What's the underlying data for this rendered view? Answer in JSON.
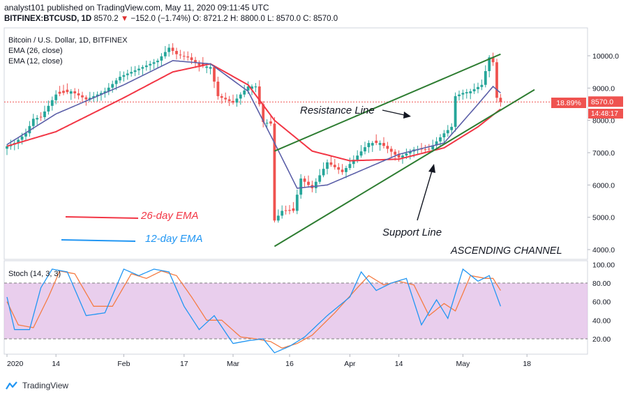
{
  "header": {
    "publisher_line": "analyst101 published on TradingView.com, May 11, 2020 09:11:45 UTC",
    "symbol": "BITFINEX:BTCUSD, 1D",
    "price": "8570.2",
    "change": "−152.0 (−1.74%)",
    "ohlc_o": "O: 8721.2",
    "ohlc_h": "H: 8800.0",
    "ohlc_l": "L: 8570.0",
    "ohlc_c": "C: 8570.0"
  },
  "legend": {
    "title": "Bitcoin / U.S. Dollar, 1D, BITFINEX",
    "ema26": "EMA (26, close)",
    "ema12": "EMA (12, close)",
    "stoch": "Stoch (14, 3, 3)"
  },
  "annotations": {
    "resistance": "Resistance Line",
    "support": "Support Line",
    "channel": "ASCENDING CHANNEL",
    "ema26_label": "26-day EMA",
    "ema12_label": "12-day EMA"
  },
  "price_badges": {
    "current": "8570.0",
    "percent": "18.89%",
    "countdown": "14:48:17"
  },
  "footer": {
    "brand": "TradingView"
  },
  "colors": {
    "up": "#26a69a",
    "down": "#ef5350",
    "ema26": "#f23645",
    "ema12": "#5b5fa8",
    "stoch_k": "#2196f3",
    "stoch_d": "#f57c44",
    "channel": "#2e7d32",
    "stoch_band": "#e1bee7"
  },
  "chart_data": {
    "type": "candlestick",
    "price_axis": {
      "ticks": [
        4000,
        5000,
        6000,
        7000,
        8000,
        9000,
        10000
      ],
      "labels": [
        "4000.0",
        "5000.0",
        "6000.0",
        "7000.0",
        "8000.0",
        "9000.0",
        "10000.0"
      ]
    },
    "stoch_axis": {
      "ticks": [
        20,
        40,
        60,
        80,
        100
      ],
      "labels": [
        "20.00",
        "40.00",
        "60.00",
        "80.00",
        "100.00"
      ],
      "band": [
        20,
        80
      ]
    },
    "time_axis": {
      "ticks": [
        "2020-01-01",
        "2020-01-14",
        "2020-02-01",
        "2020-02-17",
        "2020-03-01",
        "2020-03-16",
        "2020-04-01",
        "2020-04-14",
        "2020-05-01",
        "2020-05-18"
      ],
      "labels": [
        "2020",
        "14",
        "Feb",
        "17",
        "Mar",
        "16",
        "Apr",
        "14",
        "May",
        "18"
      ]
    },
    "anchors": [
      [
        "2020-01-01",
        7200
      ],
      [
        "2020-01-03",
        7300
      ],
      [
        "2020-01-06",
        7600
      ],
      [
        "2020-01-08",
        8050
      ],
      [
        "2020-01-10",
        8100
      ],
      [
        "2020-01-14",
        8800
      ],
      [
        "2020-01-18",
        8900
      ],
      [
        "2020-01-22",
        8650
      ],
      [
        "2020-01-27",
        8900
      ],
      [
        "2020-01-31",
        9350
      ],
      [
        "2020-02-05",
        9600
      ],
      [
        "2020-02-10",
        9850
      ],
      [
        "2020-02-13",
        10250
      ],
      [
        "2020-02-15",
        10050
      ],
      [
        "2020-02-18",
        9950
      ],
      [
        "2020-02-21",
        9700
      ],
      [
        "2020-02-24",
        9650
      ],
      [
        "2020-02-26",
        8750
      ],
      [
        "2020-03-01",
        8550
      ],
      [
        "2020-03-05",
        9050
      ],
      [
        "2020-03-07",
        9050
      ],
      [
        "2020-03-09",
        7950
      ],
      [
        "2020-03-11",
        7900
      ],
      [
        "2020-03-12",
        4900
      ],
      [
        "2020-03-14",
        5200
      ],
      [
        "2020-03-17",
        5200
      ],
      [
        "2020-03-19",
        6200
      ],
      [
        "2020-03-22",
        5900
      ],
      [
        "2020-03-26",
        6700
      ],
      [
        "2020-03-30",
        6400
      ],
      [
        "2020-04-01",
        6650
      ],
      [
        "2020-04-06",
        7300
      ],
      [
        "2020-04-09",
        7300
      ],
      [
        "2020-04-14",
        6850
      ],
      [
        "2020-04-18",
        7100
      ],
      [
        "2020-04-22",
        7100
      ],
      [
        "2020-04-26",
        7600
      ],
      [
        "2020-04-28",
        7800
      ],
      [
        "2020-04-29",
        8750
      ],
      [
        "2020-05-01",
        8850
      ],
      [
        "2020-05-03",
        8900
      ],
      [
        "2020-05-06",
        9100
      ],
      [
        "2020-05-08",
        9950
      ],
      [
        "2020-05-09",
        9800
      ],
      [
        "2020-05-10",
        8700
      ],
      [
        "2020-05-11",
        8570
      ]
    ],
    "ema26_anchors": [
      [
        "2020-01-01",
        7200
      ],
      [
        "2020-01-14",
        7650
      ],
      [
        "2020-02-01",
        8700
      ],
      [
        "2020-02-14",
        9500
      ],
      [
        "2020-02-24",
        9750
      ],
      [
        "2020-03-05",
        9100
      ],
      [
        "2020-03-12",
        8000
      ],
      [
        "2020-03-22",
        7050
      ],
      [
        "2020-04-01",
        6750
      ],
      [
        "2020-04-14",
        6800
      ],
      [
        "2020-04-26",
        7150
      ],
      [
        "2020-05-05",
        7800
      ],
      [
        "2020-05-11",
        8350
      ]
    ],
    "ema12_anchors": [
      [
        "2020-01-01",
        7250
      ],
      [
        "2020-01-14",
        8200
      ],
      [
        "2020-02-01",
        9100
      ],
      [
        "2020-02-14",
        9850
      ],
      [
        "2020-02-24",
        9750
      ],
      [
        "2020-03-05",
        8900
      ],
      [
        "2020-03-12",
        7300
      ],
      [
        "2020-03-18",
        5900
      ],
      [
        "2020-03-26",
        6000
      ],
      [
        "2020-04-01",
        6300
      ],
      [
        "2020-04-14",
        6950
      ],
      [
        "2020-04-26",
        7300
      ],
      [
        "2020-05-05",
        8500
      ],
      [
        "2020-05-09",
        9050
      ],
      [
        "2020-05-11",
        8850
      ]
    ],
    "channel": {
      "resistance": [
        [
          "2020-03-12",
          7050
        ],
        [
          "2020-05-11",
          10050
        ]
      ],
      "support": [
        [
          "2020-03-12",
          4100
        ],
        [
          "2020-05-20",
          8950
        ]
      ]
    },
    "stoch_k_anchors": [
      [
        "2020-01-01",
        65
      ],
      [
        "2020-01-03",
        30
      ],
      [
        "2020-01-07",
        30
      ],
      [
        "2020-01-10",
        75
      ],
      [
        "2020-01-13",
        95
      ],
      [
        "2020-01-17",
        92
      ],
      [
        "2020-01-22",
        45
      ],
      [
        "2020-01-27",
        48
      ],
      [
        "2020-02-01",
        95
      ],
      [
        "2020-02-05",
        88
      ],
      [
        "2020-02-09",
        95
      ],
      [
        "2020-02-13",
        92
      ],
      [
        "2020-02-17",
        55
      ],
      [
        "2020-02-21",
        30
      ],
      [
        "2020-02-25",
        45
      ],
      [
        "2020-03-01",
        15
      ],
      [
        "2020-03-05",
        18
      ],
      [
        "2020-03-09",
        20
      ],
      [
        "2020-03-12",
        5
      ],
      [
        "2020-03-16",
        12
      ],
      [
        "2020-03-20",
        22
      ],
      [
        "2020-03-26",
        45
      ],
      [
        "2020-04-01",
        65
      ],
      [
        "2020-04-04",
        92
      ],
      [
        "2020-04-08",
        72
      ],
      [
        "2020-04-12",
        80
      ],
      [
        "2020-04-16",
        85
      ],
      [
        "2020-04-20",
        35
      ],
      [
        "2020-04-24",
        62
      ],
      [
        "2020-04-27",
        42
      ],
      [
        "2020-05-01",
        95
      ],
      [
        "2020-05-05",
        82
      ],
      [
        "2020-05-08",
        88
      ],
      [
        "2020-05-11",
        55
      ]
    ],
    "stoch_d_anchors": [
      [
        "2020-01-01",
        60
      ],
      [
        "2020-01-04",
        35
      ],
      [
        "2020-01-08",
        32
      ],
      [
        "2020-01-12",
        65
      ],
      [
        "2020-01-15",
        93
      ],
      [
        "2020-01-19",
        90
      ],
      [
        "2020-01-24",
        55
      ],
      [
        "2020-01-29",
        55
      ],
      [
        "2020-02-03",
        90
      ],
      [
        "2020-02-07",
        85
      ],
      [
        "2020-02-11",
        93
      ],
      [
        "2020-02-15",
        88
      ],
      [
        "2020-02-19",
        65
      ],
      [
        "2020-02-23",
        40
      ],
      [
        "2020-02-27",
        40
      ],
      [
        "2020-03-03",
        22
      ],
      [
        "2020-03-07",
        20
      ],
      [
        "2020-03-11",
        17
      ],
      [
        "2020-03-14",
        10
      ],
      [
        "2020-03-18",
        15
      ],
      [
        "2020-03-22",
        24
      ],
      [
        "2020-03-28",
        48
      ],
      [
        "2020-04-03",
        75
      ],
      [
        "2020-04-06",
        88
      ],
      [
        "2020-04-10",
        78
      ],
      [
        "2020-04-14",
        82
      ],
      [
        "2020-04-18",
        78
      ],
      [
        "2020-04-22",
        45
      ],
      [
        "2020-04-26",
        58
      ],
      [
        "2020-04-29",
        50
      ],
      [
        "2020-05-03",
        88
      ],
      [
        "2020-05-07",
        85
      ],
      [
        "2020-05-09",
        85
      ],
      [
        "2020-05-11",
        72
      ]
    ]
  }
}
